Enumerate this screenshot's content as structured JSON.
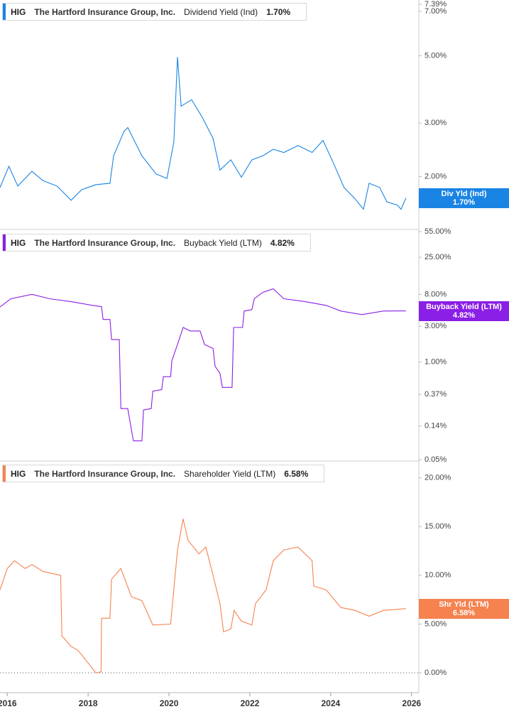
{
  "chart_data": [
    {
      "type": "line",
      "ticker": "HIG",
      "company": "The Hartford Insurance Group, Inc.",
      "metric": "Dividend Yield (Ind)",
      "current_label": "1.70%",
      "badge": "Div Yld (Ind)",
      "color": "#1a84e4",
      "log_scale": true,
      "x": [
        2015.82,
        2016.04,
        2016.26,
        2016.61,
        2016.88,
        2017.23,
        2017.58,
        2017.84,
        2018.19,
        2018.54,
        2018.63,
        2018.89,
        2018.98,
        2019.33,
        2019.68,
        2019.95,
        2020.12,
        2020.21,
        2020.3,
        2020.56,
        2020.82,
        2021.09,
        2021.26,
        2021.53,
        2021.79,
        2022.05,
        2022.32,
        2022.58,
        2022.84,
        2023.19,
        2023.54,
        2023.81,
        2024.07,
        2024.33,
        2024.6,
        2024.81,
        2024.95,
        2025.21,
        2025.39,
        2025.65,
        2025.74,
        2025.86
      ],
      "values": [
        1.84,
        2.16,
        1.86,
        2.08,
        1.94,
        1.86,
        1.67,
        1.81,
        1.88,
        1.9,
        2.34,
        2.82,
        2.9,
        2.34,
        2.04,
        1.97,
        2.6,
        4.95,
        3.41,
        3.58,
        3.14,
        2.67,
        2.1,
        2.27,
        1.99,
        2.27,
        2.34,
        2.46,
        2.4,
        2.53,
        2.4,
        2.63,
        2.21,
        1.84,
        1.69,
        1.56,
        1.9,
        1.84,
        1.65,
        1.61,
        1.56,
        1.7
      ],
      "ylim": [
        1.36,
        7.39
      ],
      "yticks": [
        {
          "value": 7.39,
          "label": "7.39%"
        },
        {
          "value": 7,
          "label": "7.00%"
        },
        {
          "value": 5,
          "label": "5.00%"
        },
        {
          "value": 3,
          "label": "3.00%"
        },
        {
          "value": 2,
          "label": "2.00%"
        }
      ]
    },
    {
      "type": "line",
      "ticker": "HIG",
      "company": "The Hartford Insurance Group, Inc.",
      "metric": "Buyback Yield (LTM)",
      "current_label": "4.82%",
      "badge": "Buyback Yield (LTM)",
      "color": "#8a1fe6",
      "log_scale": true,
      "x": [
        2015.82,
        2016.09,
        2016.61,
        2017.05,
        2017.58,
        2018.11,
        2018.33,
        2018.37,
        2018.54,
        2018.58,
        2018.77,
        2018.81,
        2018.98,
        2019.12,
        2019.33,
        2019.37,
        2019.56,
        2019.6,
        2019.82,
        2019.86,
        2020.04,
        2020.07,
        2020.21,
        2020.35,
        2020.53,
        2020.77,
        2020.88,
        2021.09,
        2021.14,
        2021.26,
        2021.32,
        2021.56,
        2021.6,
        2021.82,
        2021.86,
        2022.05,
        2022.11,
        2022.32,
        2022.58,
        2022.84,
        2023.37,
        2023.89,
        2024.25,
        2024.77,
        2025.3,
        2025.86
      ],
      "values": [
        5.44,
        7.0,
        8.0,
        7.0,
        6.4,
        5.7,
        5.5,
        3.7,
        3.7,
        2.0,
        2.0,
        0.24,
        0.24,
        0.089,
        0.089,
        0.23,
        0.24,
        0.41,
        0.43,
        0.64,
        0.64,
        1.04,
        1.72,
        2.9,
        2.6,
        2.6,
        1.72,
        1.52,
        0.88,
        0.71,
        0.46,
        0.46,
        2.9,
        2.9,
        4.8,
        5.0,
        7.0,
        8.5,
        9.5,
        7.0,
        6.4,
        5.7,
        4.8,
        4.3,
        4.8,
        4.82
      ],
      "ylim": [
        0.05,
        55
      ],
      "yticks": [
        {
          "value": 55,
          "label": "55.00%"
        },
        {
          "value": 25,
          "label": "25.00%"
        },
        {
          "value": 8,
          "label": "8.00%"
        },
        {
          "value": 3,
          "label": "3.00%"
        },
        {
          "value": 1,
          "label": "1.00%"
        },
        {
          "value": 0.37,
          "label": "0.37%"
        },
        {
          "value": 0.14,
          "label": "0.14%"
        },
        {
          "value": 0.05,
          "label": "0.05%"
        }
      ]
    },
    {
      "type": "line",
      "ticker": "HIG",
      "company": "The Hartford Insurance Group, Inc.",
      "metric": "Shareholder Yield (LTM)",
      "current_label": "6.58%",
      "badge": "Shr Yld (LTM)",
      "color": "#f5824f",
      "log_scale": false,
      "x": [
        2015.82,
        2016.0,
        2016.18,
        2016.44,
        2016.61,
        2016.88,
        2017.32,
        2017.35,
        2017.58,
        2017.75,
        2018.02,
        2018.19,
        2018.32,
        2018.33,
        2018.54,
        2018.58,
        2018.81,
        2019.07,
        2019.33,
        2019.6,
        2020.04,
        2020.21,
        2020.35,
        2020.47,
        2020.74,
        2020.91,
        2021.09,
        2021.26,
        2021.35,
        2021.53,
        2021.61,
        2021.79,
        2022.05,
        2022.14,
        2022.4,
        2022.58,
        2022.84,
        2023.19,
        2023.54,
        2023.58,
        2023.89,
        2024.25,
        2024.6,
        2024.95,
        2025.3,
        2025.86
      ],
      "values": [
        8.5,
        10.7,
        11.5,
        10.7,
        11.1,
        10.4,
        10.0,
        3.8,
        2.7,
        2.3,
        0.9,
        0,
        0.1,
        5.6,
        5.6,
        9.6,
        10.7,
        7.8,
        7.4,
        4.9,
        5.0,
        12.6,
        15.8,
        13.6,
        12.2,
        12.9,
        10.0,
        7.1,
        4.2,
        4.5,
        6.4,
        5.3,
        4.9,
        7.1,
        8.5,
        11.5,
        12.6,
        12.9,
        11.5,
        8.9,
        8.5,
        6.7,
        6.4,
        5.8,
        6.4,
        6.58
      ],
      "ylim": [
        -2.04,
        21.5
      ],
      "yticks": [
        {
          "value": 20,
          "label": "20.00%"
        },
        {
          "value": 15,
          "label": "15.00%"
        },
        {
          "value": 10,
          "label": "10.00%"
        },
        {
          "value": 5,
          "label": "5.00%"
        },
        {
          "value": 0,
          "label": "0.00%"
        }
      ],
      "xlim": [
        2015.82,
        2026.18
      ],
      "xticks": [
        2016,
        2018,
        2020,
        2022,
        2024,
        2026
      ]
    }
  ]
}
